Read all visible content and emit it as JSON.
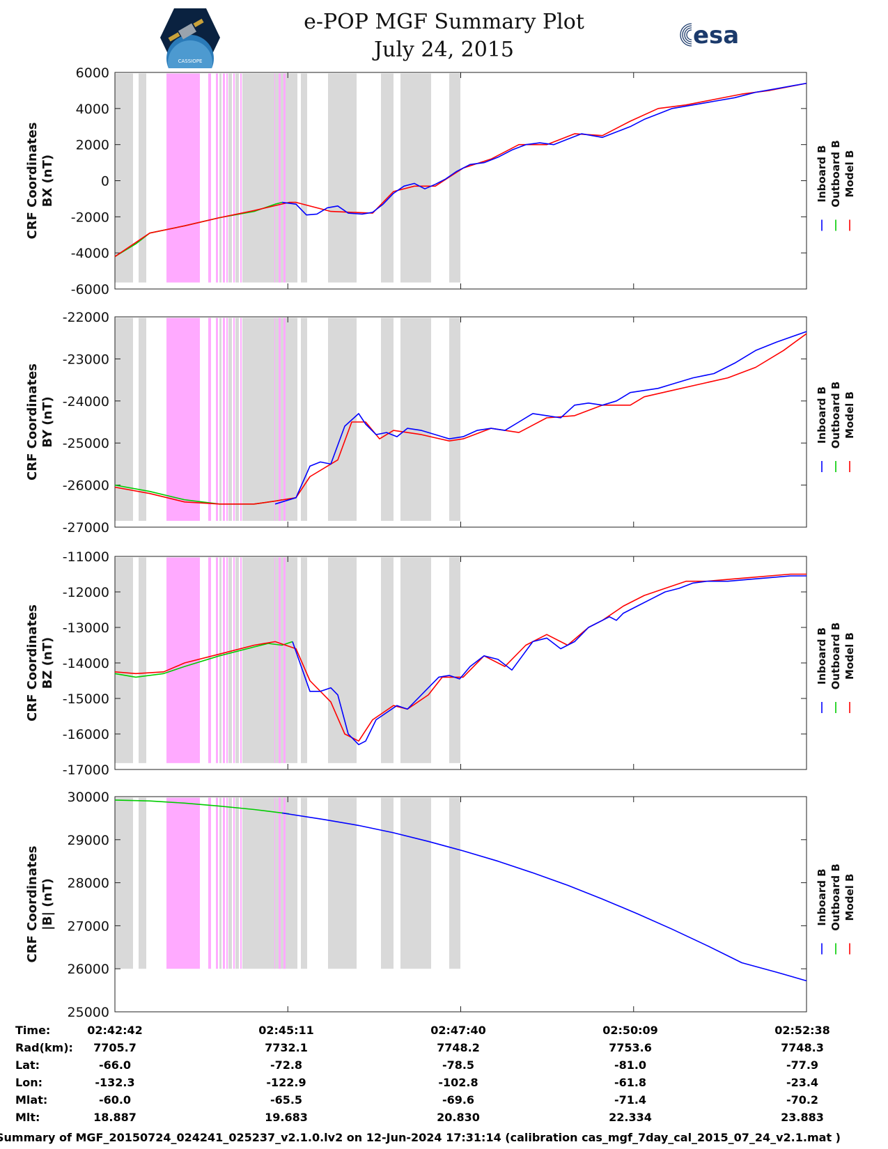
{
  "header": {
    "title": "e-POP MGF Summary Plot",
    "date": "July 24, 2015",
    "esa_logo_text": "esa",
    "mission_logo_text": "CASSIOPE"
  },
  "colors": {
    "inboard": "#0000ff",
    "outboard": "#00cc00",
    "model": "#ff0000",
    "gray_shade": "#d9d9d9",
    "pink_shade": "#ffaaff"
  },
  "legend": [
    {
      "label": "Inboard B",
      "color": "#0000ff"
    },
    {
      "label": "Outboard B",
      "color": "#00cc00"
    },
    {
      "label": "Model B",
      "color": "#ff0000"
    }
  ],
  "shading": {
    "gray": [
      [
        0,
        0.26
      ],
      [
        0.34,
        0.45
      ],
      [
        1.5,
        1.53
      ],
      [
        1.63,
        1.68
      ],
      [
        1.73,
        1.78
      ],
      [
        1.83,
        2.62
      ],
      [
        2.67,
        2.76
      ],
      [
        3.06,
        3.47
      ],
      [
        3.82,
        4.0
      ],
      [
        4.1,
        4.54
      ],
      [
        4.8,
        4.96
      ]
    ],
    "pink": [
      [
        0.74,
        1.22
      ],
      [
        1.34,
        1.38
      ],
      [
        1.45,
        1.48
      ],
      [
        1.55,
        1.58
      ],
      [
        1.6,
        1.62
      ],
      [
        1.7,
        1.72
      ],
      [
        1.8,
        1.82
      ],
      [
        2.29,
        2.3
      ],
      [
        2.35,
        2.38
      ],
      [
        2.42,
        2.45
      ]
    ]
  },
  "chart_data": [
    {
      "type": "line",
      "ylabel": "CRF Coordinates BX (nT)",
      "ylim": [
        -6000,
        6000
      ],
      "yticks": [
        "6000",
        "4000",
        "2000",
        "0",
        "-2000",
        "-4000",
        "-6000"
      ],
      "xlim_minutes": [
        0,
        9.93
      ],
      "x_ticks": [
        "02:42:42",
        "02:45:11",
        "02:47:40",
        "02:50:09",
        "02:52:38"
      ],
      "series": [
        {
          "name": "Outboard B",
          "color": "#00cc00",
          "x": [
            0,
            0.3,
            0.5,
            1.0,
            1.5,
            2.0,
            2.3,
            2.4
          ],
          "y": [
            -4200,
            -3500,
            -2900,
            -2500,
            -2050,
            -1700,
            -1300,
            -1200
          ]
        },
        {
          "name": "Model B",
          "color": "#ff0000",
          "x": [
            0,
            0.5,
            1.0,
            1.5,
            2.0,
            2.5,
            2.6,
            3.1,
            3.7,
            4.0,
            4.3,
            4.6,
            5.0,
            5.4,
            5.8,
            6.2,
            6.6,
            7.0,
            7.4,
            7.8,
            8.2,
            8.6,
            9.0,
            9.4,
            9.93
          ],
          "y": [
            -4200,
            -2900,
            -2500,
            -2050,
            -1650,
            -1200,
            -1200,
            -1700,
            -1800,
            -600,
            -300,
            -300,
            700,
            1200,
            2000,
            2000,
            2600,
            2500,
            3300,
            4000,
            4200,
            4500,
            4800,
            5000,
            5400
          ]
        },
        {
          "name": "Inboard B",
          "color": "#0000ff",
          "x": [
            2.4,
            2.6,
            2.75,
            2.9,
            3.05,
            3.2,
            3.35,
            3.55,
            3.7,
            3.85,
            4.0,
            4.15,
            4.3,
            4.45,
            4.6,
            4.75,
            4.9,
            5.1,
            5.3,
            5.5,
            5.7,
            5.9,
            6.1,
            6.3,
            6.5,
            6.7,
            6.85,
            7.0,
            7.2,
            7.4,
            7.6,
            7.8,
            8.0,
            8.3,
            8.6,
            8.9,
            9.2,
            9.5,
            9.93
          ],
          "y": [
            -1200,
            -1300,
            -1900,
            -1850,
            -1500,
            -1400,
            -1800,
            -1850,
            -1750,
            -1300,
            -700,
            -300,
            -150,
            -450,
            -200,
            100,
            500,
            900,
            1000,
            1300,
            1700,
            2000,
            2100,
            2000,
            2300,
            2600,
            2500,
            2400,
            2700,
            3000,
            3400,
            3700,
            4000,
            4200,
            4400,
            4600,
            4900,
            5100,
            5400
          ]
        }
      ]
    },
    {
      "type": "line",
      "ylabel": "CRF Coordinates BY (nT)",
      "ylim": [
        -27000,
        -22000
      ],
      "yticks": [
        "-22000",
        "-23000",
        "-24000",
        "-25000",
        "-26000",
        "-27000"
      ],
      "xlim_minutes": [
        0,
        9.93
      ],
      "x_ticks": [
        "02:42:42",
        "02:45:11",
        "02:47:40",
        "02:50:09",
        "02:52:38"
      ],
      "series": [
        {
          "name": "Outboard B",
          "color": "#00cc00",
          "x": [
            0,
            0.5,
            1.0,
            1.5,
            2.0,
            2.3,
            2.4
          ],
          "y": [
            -26000,
            -26150,
            -26350,
            -26450,
            -26450,
            -26380,
            -26350
          ]
        },
        {
          "name": "Model B",
          "color": "#ff0000",
          "x": [
            0,
            0.5,
            1.0,
            1.5,
            2.0,
            2.3,
            2.6,
            2.8,
            3.2,
            3.4,
            3.6,
            3.8,
            4.0,
            4.4,
            4.8,
            5.0,
            5.4,
            5.8,
            6.2,
            6.6,
            7.0,
            7.4,
            7.6,
            8.0,
            8.4,
            8.8,
            9.2,
            9.6,
            9.93
          ],
          "y": [
            -26050,
            -26200,
            -26400,
            -26450,
            -26450,
            -26380,
            -26300,
            -25800,
            -25400,
            -24500,
            -24500,
            -24900,
            -24700,
            -24800,
            -24950,
            -24900,
            -24650,
            -24750,
            -24400,
            -24350,
            -24100,
            -24100,
            -23900,
            -23750,
            -23600,
            -23450,
            -23200,
            -22800,
            -22400
          ]
        },
        {
          "name": "Inboard B",
          "color": "#0000ff",
          "x": [
            2.3,
            2.6,
            2.8,
            2.95,
            3.1,
            3.3,
            3.5,
            3.6,
            3.75,
            3.9,
            4.05,
            4.2,
            4.4,
            4.6,
            4.8,
            5.0,
            5.2,
            5.4,
            5.6,
            5.8,
            6.0,
            6.2,
            6.4,
            6.6,
            6.8,
            7.0,
            7.2,
            7.4,
            7.6,
            7.8,
            8.0,
            8.3,
            8.6,
            8.9,
            9.2,
            9.5,
            9.93
          ],
          "y": [
            -26450,
            -26300,
            -25550,
            -25450,
            -25500,
            -24600,
            -24300,
            -24550,
            -24800,
            -24750,
            -24850,
            -24650,
            -24700,
            -24800,
            -24900,
            -24850,
            -24700,
            -24650,
            -24700,
            -24500,
            -24300,
            -24350,
            -24400,
            -24100,
            -24050,
            -24100,
            -24000,
            -23800,
            -23750,
            -23700,
            -23600,
            -23450,
            -23350,
            -23100,
            -22800,
            -22600,
            -22350
          ]
        }
      ]
    },
    {
      "type": "line",
      "ylabel": "CRF Coordinates BZ (nT)",
      "ylim": [
        -17000,
        -11000
      ],
      "yticks": [
        "-11000",
        "-12000",
        "-13000",
        "-14000",
        "-15000",
        "-16000",
        "-17000"
      ],
      "xlim_minutes": [
        0,
        9.93
      ],
      "x_ticks": [
        "02:42:42",
        "02:45:11",
        "02:47:40",
        "02:50:09",
        "02:52:38"
      ],
      "series": [
        {
          "name": "Outboard B",
          "color": "#00cc00",
          "x": [
            0,
            0.3,
            0.7,
            1.0,
            1.5,
            2.0,
            2.2,
            2.4,
            2.55
          ],
          "y": [
            -14300,
            -14400,
            -14300,
            -14100,
            -13800,
            -13550,
            -13450,
            -13500,
            -13400
          ]
        },
        {
          "name": "Model B",
          "color": "#ff0000",
          "x": [
            0,
            0.3,
            0.7,
            1.0,
            1.5,
            2.0,
            2.3,
            2.6,
            2.8,
            3.1,
            3.3,
            3.5,
            3.7,
            4.0,
            4.2,
            4.5,
            4.7,
            5.0,
            5.3,
            5.6,
            5.9,
            6.2,
            6.5,
            6.8,
            7.0,
            7.3,
            7.6,
            7.9,
            8.2,
            8.5,
            8.8,
            9.1,
            9.4,
            9.7,
            9.93
          ],
          "y": [
            -14250,
            -14300,
            -14250,
            -14000,
            -13750,
            -13500,
            -13400,
            -13600,
            -14500,
            -15100,
            -16000,
            -16200,
            -15600,
            -15200,
            -15300,
            -14900,
            -14400,
            -14400,
            -13800,
            -14100,
            -13500,
            -13200,
            -13500,
            -13000,
            -12800,
            -12400,
            -12100,
            -11900,
            -11700,
            -11700,
            -11650,
            -11600,
            -11550,
            -11500,
            -11500
          ]
        },
        {
          "name": "Inboard B",
          "color": "#0000ff",
          "x": [
            2.55,
            2.8,
            2.95,
            3.1,
            3.2,
            3.35,
            3.5,
            3.6,
            3.75,
            3.9,
            4.05,
            4.2,
            4.35,
            4.5,
            4.65,
            4.8,
            4.95,
            5.1,
            5.3,
            5.5,
            5.7,
            5.85,
            6.0,
            6.2,
            6.4,
            6.6,
            6.8,
            6.9,
            7.0,
            7.1,
            7.2,
            7.3,
            7.5,
            7.7,
            7.9,
            8.1,
            8.3,
            8.5,
            8.8,
            9.1,
            9.4,
            9.7,
            9.93
          ],
          "y": [
            -13400,
            -14800,
            -14800,
            -14700,
            -14900,
            -16000,
            -16300,
            -16200,
            -15600,
            -15400,
            -15200,
            -15300,
            -15000,
            -14700,
            -14400,
            -14350,
            -14450,
            -14100,
            -13800,
            -13900,
            -14200,
            -13800,
            -13400,
            -13300,
            -13600,
            -13400,
            -13000,
            -12900,
            -12800,
            -12700,
            -12800,
            -12600,
            -12400,
            -12200,
            -12000,
            -11900,
            -11750,
            -11700,
            -11700,
            -11650,
            -11600,
            -11550,
            -11550
          ]
        }
      ]
    },
    {
      "type": "line",
      "ylabel": "CRF Coordinates |B| (nT)",
      "ylim": [
        25000,
        30000
      ],
      "yticks": [
        "30000",
        "29000",
        "28000",
        "27000",
        "26000",
        "25000"
      ],
      "xlim_minutes": [
        0,
        9.93
      ],
      "x_ticks": [
        "02:42:42",
        "02:45:11",
        "02:47:40",
        "02:50:09",
        "02:52:38"
      ],
      "series": [
        {
          "name": "Outboard B",
          "color": "#00cc00",
          "x": [
            0,
            0.5,
            1.0,
            1.5,
            2.0,
            2.5
          ],
          "y": [
            29920,
            29900,
            29850,
            29780,
            29700,
            29600
          ]
        },
        {
          "name": "Inboard B",
          "color": "#0000ff",
          "x": [
            2.4,
            3.0,
            3.5,
            4.0,
            4.5,
            5.0,
            5.5,
            6.0,
            6.5,
            7.0,
            7.5,
            8.0,
            8.5,
            9.0,
            9.5,
            9.93
          ],
          "y": [
            29620,
            29470,
            29330,
            29160,
            28960,
            28740,
            28500,
            28230,
            27940,
            27620,
            27280,
            26920,
            26540,
            26140,
            25920,
            25720
          ]
        }
      ]
    }
  ],
  "ephemeris": {
    "row_labels": [
      "Time:",
      "Rad(km):",
      "Lat:",
      "Lon:",
      "Mlat:",
      "Mlt:"
    ],
    "columns": [
      [
        "02:42:42",
        "7705.7",
        "-66.0",
        "-132.3",
        "-60.0",
        "18.887"
      ],
      [
        "02:45:11",
        "7732.1",
        "-72.8",
        "-122.9",
        "-65.5",
        "19.683"
      ],
      [
        "02:47:40",
        "7748.2",
        "-78.5",
        "-102.8",
        "-69.6",
        "20.830"
      ],
      [
        "02:50:09",
        "7753.6",
        "-81.0",
        "-61.8",
        "-71.4",
        "22.334"
      ],
      [
        "02:52:38",
        "7748.3",
        "-77.9",
        "-23.4",
        "-70.2",
        "23.883"
      ]
    ]
  },
  "footer": "Summary of MGF_20150724_024241_025237_v2.1.0.lv2 on 12-Jun-2024 17:31:14 (calibration cas_mgf_7day_cal_2015_07_24_v2.1.mat )"
}
